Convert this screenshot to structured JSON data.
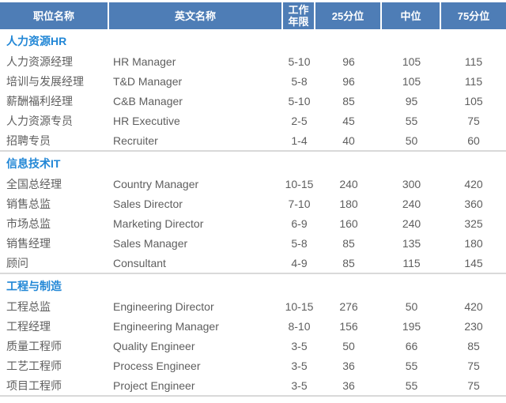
{
  "table": {
    "columns": [
      "职位名称",
      "英文名称",
      "工作年限",
      "25分位",
      "中位",
      "75分位"
    ],
    "sections": [
      {
        "title": "人力资源HR",
        "rows": [
          {
            "cn": "人力资源经理",
            "en": "HR Manager",
            "years": "5-10",
            "p25": "96",
            "p50": "105",
            "p75": "115"
          },
          {
            "cn": "培训与发展经理",
            "en": "T&D Manager",
            "years": "5-8",
            "p25": "96",
            "p50": "105",
            "p75": "115"
          },
          {
            "cn": "薪酬福利经理",
            "en": "C&B Manager",
            "years": "5-10",
            "p25": "85",
            "p50": "95",
            "p75": "105"
          },
          {
            "cn": "人力资源专员",
            "en": "HR Executive",
            "years": "2-5",
            "p25": "45",
            "p50": "55",
            "p75": "75"
          },
          {
            "cn": "招聘专员",
            "en": "Recruiter",
            "years": "1-4",
            "p25": "40",
            "p50": "50",
            "p75": "60"
          }
        ]
      },
      {
        "title": "信息技术IT",
        "rows": [
          {
            "cn": "全国总经理",
            "en": "Country Manager",
            "years": "10-15",
            "p25": "240",
            "p50": "300",
            "p75": "420"
          },
          {
            "cn": "销售总监",
            "en": "Sales Director",
            "years": "7-10",
            "p25": "180",
            "p50": "240",
            "p75": "360"
          },
          {
            "cn": "市场总监",
            "en": "Marketing Director",
            "years": "6-9",
            "p25": "160",
            "p50": "240",
            "p75": "325"
          },
          {
            "cn": "销售经理",
            "en": "Sales Manager",
            "years": "5-8",
            "p25": "85",
            "p50": "135",
            "p75": "180"
          },
          {
            "cn": "顾问",
            "en": "Consultant",
            "years": "4-9",
            "p25": "85",
            "p50": "115",
            "p75": "145"
          }
        ]
      },
      {
        "title": "工程与制造",
        "rows": [
          {
            "cn": "工程总监",
            "en": "Engineering Director",
            "years": "10-15",
            "p25": "276",
            "p50": "50",
            "p75": "420"
          },
          {
            "cn": "工程经理",
            "en": "Engineering Manager",
            "years": "8-10",
            "p25": "156",
            "p50": "195",
            "p75": "230"
          },
          {
            "cn": "质量工程师",
            "en": "Quality Engineer",
            "years": "3-5",
            "p25": "50",
            "p50": "66",
            "p75": "85"
          },
          {
            "cn": "工艺工程师",
            "en": "Process Engineer",
            "years": "3-5",
            "p25": "36",
            "p50": "55",
            "p75": "75"
          },
          {
            "cn": "项目工程师",
            "en": "Project Engineer",
            "years": "3-5",
            "p25": "36",
            "p50": "55",
            "p75": "75"
          }
        ]
      }
    ]
  },
  "colors": {
    "header_bg": "#4e7db6",
    "header_text": "#ffffff",
    "section_title": "#2287d6",
    "body_text": "#5e5e5e",
    "divider": "#d9d9d9"
  }
}
